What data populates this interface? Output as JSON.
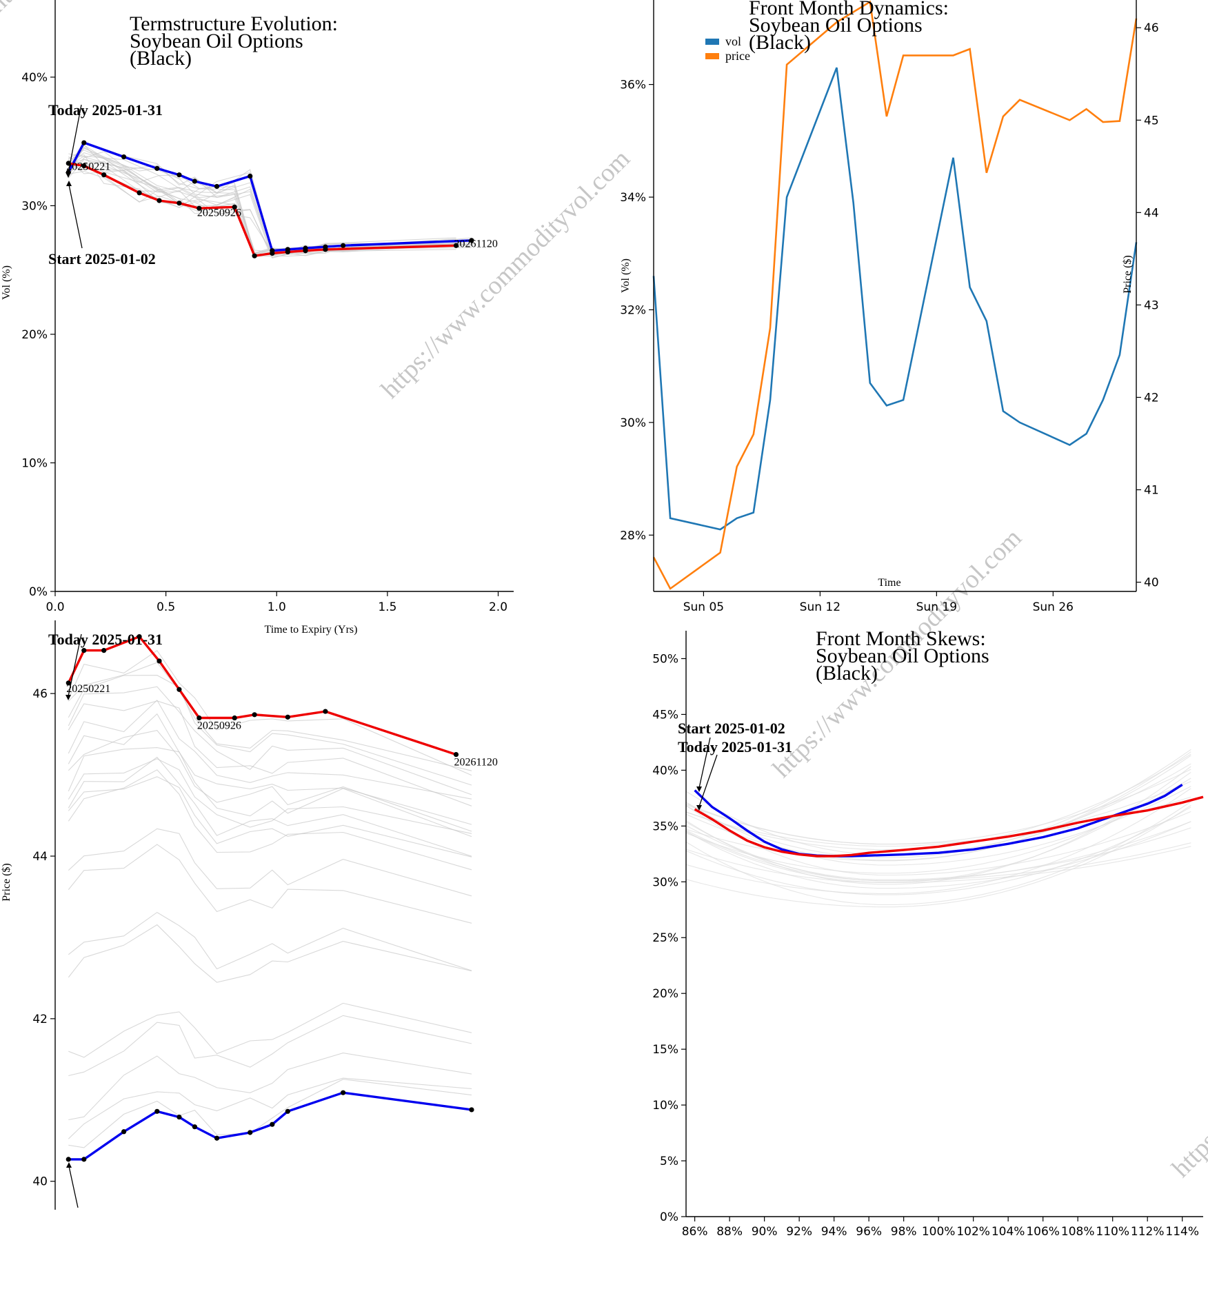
{
  "watermark": "https://www.commodityvol.com",
  "chart_data": [
    {
      "id": "termstructure",
      "type": "line",
      "title": [
        "Termstructure Evolution:",
        "Soybean Oil Options",
        "(Black)"
      ],
      "xlabel": "Time to Expiry (Yrs)",
      "ylabel": "Vol (%)",
      "xlim": [
        0,
        2.07
      ],
      "ylim": [
        0,
        46
      ],
      "xticks": [
        0.0,
        0.5,
        1.0,
        1.5,
        2.0
      ],
      "xtick_labels": [
        "0.0",
        "0.5",
        "1.0",
        "1.5",
        "2.0"
      ],
      "yticks": [
        0,
        10,
        20,
        30,
        40
      ],
      "ytick_labels": [
        "0%",
        "10%",
        "20%",
        "30%",
        "40%"
      ],
      "annotations": {
        "today": "Today 2025-01-31",
        "start": "Start 2025-01-02"
      },
      "point_labels": [
        {
          "text": "20250221",
          "x": 0.06,
          "y": 33.0
        },
        {
          "text": "20250926",
          "x": 0.65,
          "y": 29.4
        },
        {
          "text": "20261120",
          "x": 1.81,
          "y": 27.0
        }
      ],
      "series": [
        {
          "name": "Today 2025-01-31",
          "color": "#0000ee",
          "x": [
            0.06,
            0.13,
            0.31,
            0.46,
            0.56,
            0.63,
            0.73,
            0.88,
            0.98,
            1.05,
            1.13,
            1.22,
            1.3,
            1.88
          ],
          "y": [
            32.6,
            34.9,
            33.8,
            32.9,
            32.4,
            31.9,
            31.5,
            32.3,
            26.5,
            26.6,
            26.7,
            26.8,
            26.9,
            27.3
          ]
        },
        {
          "name": "Start 2025-01-02",
          "color": "#ee0000",
          "x": [
            0.06,
            0.13,
            0.22,
            0.38,
            0.47,
            0.56,
            0.65,
            0.81,
            0.9,
            0.98,
            1.05,
            1.13,
            1.22,
            1.81
          ],
          "y": [
            33.3,
            33.1,
            32.4,
            31.0,
            30.4,
            30.2,
            29.8,
            29.9,
            26.1,
            26.3,
            26.4,
            26.5,
            26.6,
            26.9
          ]
        }
      ]
    },
    {
      "id": "dynamics",
      "type": "line",
      "title": [
        "Front Month Dynamics:",
        "Soybean Oil Options",
        "(Black)"
      ],
      "xlabel": "Time",
      "ylabel": "Vol (%)",
      "y2label": "Price ($)",
      "legend": [
        {
          "label": "vol",
          "color": "#1f77b4"
        },
        {
          "label": "price",
          "color": "#ff7f0e"
        }
      ],
      "xlim": [
        "2025-01-02",
        "2025-01-31"
      ],
      "xtick_labels": [
        "Sun 05",
        "Sun 12",
        "Sun 19",
        "Sun 26"
      ],
      "xtick_dates": [
        "2025-01-05",
        "2025-01-12",
        "2025-01-19",
        "2025-01-26"
      ],
      "ylim": [
        27.0,
        37.5
      ],
      "yticks": [
        28,
        30,
        32,
        34,
        36
      ],
      "ytick_labels": [
        "28%",
        "30%",
        "32%",
        "34%",
        "36%"
      ],
      "y2lim": [
        39.9,
        46.3
      ],
      "y2ticks": [
        40,
        41,
        42,
        43,
        44,
        45,
        46
      ],
      "y2tick_labels": [
        "40",
        "41",
        "42",
        "43",
        "44",
        "45",
        "46"
      ],
      "dates": [
        "2025-01-02",
        "2025-01-03",
        "2025-01-06",
        "2025-01-07",
        "2025-01-08",
        "2025-01-09",
        "2025-01-10",
        "2025-01-13",
        "2025-01-14",
        "2025-01-15",
        "2025-01-16",
        "2025-01-17",
        "2025-01-20",
        "2025-01-21",
        "2025-01-22",
        "2025-01-23",
        "2025-01-24",
        "2025-01-27",
        "2025-01-28",
        "2025-01-29",
        "2025-01-30",
        "2025-01-31"
      ],
      "series": [
        {
          "name": "vol",
          "axis": "left",
          "color": "#1f77b4",
          "values": [
            32.6,
            28.3,
            28.1,
            28.3,
            28.4,
            30.4,
            34.0,
            36.3,
            33.9,
            30.7,
            30.3,
            30.4,
            34.7,
            32.4,
            31.8,
            30.2,
            30.0,
            29.6,
            29.8,
            30.4,
            31.2,
            33.2
          ]
        },
        {
          "name": "price",
          "axis": "right",
          "color": "#ff7f0e",
          "values": [
            40.27,
            39.93,
            40.32,
            41.25,
            41.6,
            42.75,
            45.6,
            46.06,
            46.17,
            46.28,
            45.04,
            45.7,
            45.7,
            45.77,
            44.43,
            45.04,
            45.22,
            45.0,
            45.12,
            44.98,
            44.99,
            46.1
          ]
        }
      ]
    },
    {
      "id": "price_termstructure",
      "type": "line",
      "xlabel": "",
      "ylabel": "Price ($)",
      "xlim": [
        0,
        2.07
      ],
      "ylim": [
        39.65,
        46.9
      ],
      "yticks": [
        40,
        42,
        44,
        46
      ],
      "ytick_labels": [
        "40",
        "42",
        "44",
        "46"
      ],
      "annotations": {
        "today": "Today 2025-01-31"
      },
      "point_labels": [
        {
          "text": "20250221",
          "x": 0.06,
          "y": 46.05
        },
        {
          "text": "20250926",
          "x": 0.65,
          "y": 45.6
        },
        {
          "text": "20261120",
          "x": 1.81,
          "y": 45.15
        }
      ],
      "series": [
        {
          "name": "Today 2025-01-31",
          "color": "#ee0000",
          "x": [
            0.06,
            0.13,
            0.22,
            0.38,
            0.47,
            0.56,
            0.65,
            0.81,
            0.9,
            1.05,
            1.22,
            1.81
          ],
          "y": [
            46.13,
            46.53,
            46.53,
            46.7,
            46.4,
            46.05,
            45.7,
            45.7,
            45.74,
            45.71,
            45.78,
            45.25
          ]
        },
        {
          "name": "Start 2025-01-02",
          "color": "#0000ee",
          "x": [
            0.06,
            0.13,
            0.31,
            0.46,
            0.56,
            0.63,
            0.73,
            0.88,
            0.98,
            1.05,
            1.3,
            1.88
          ],
          "y": [
            40.27,
            40.27,
            40.61,
            40.86,
            40.79,
            40.67,
            40.53,
            40.6,
            40.7,
            40.86,
            41.09,
            40.88
          ]
        }
      ]
    },
    {
      "id": "skews",
      "type": "line",
      "title": [
        "Front Month Skews:",
        "Soybean Oil Options",
        "(Black)"
      ],
      "xlabel": "",
      "ylabel": "",
      "xlim": [
        85.5,
        115.2
      ],
      "ylim": [
        0,
        52.5
      ],
      "xticks": [
        86,
        88,
        90,
        92,
        94,
        96,
        98,
        100,
        102,
        104,
        106,
        108,
        110,
        112,
        114
      ],
      "xtick_labels": [
        "86%",
        "88%",
        "90%",
        "92%",
        "94%",
        "96%",
        "98%",
        "100%",
        "102%",
        "104%",
        "106%",
        "108%",
        "110%",
        "112%",
        "114%"
      ],
      "yticks": [
        0,
        5,
        10,
        15,
        20,
        25,
        30,
        35,
        40,
        45,
        50
      ],
      "ytick_labels": [
        "0%",
        "5%",
        "10%",
        "15%",
        "20%",
        "25%",
        "30%",
        "35%",
        "40%",
        "45%",
        "50%"
      ],
      "annotations": {
        "start": "Start 2025-01-02",
        "today": "Today 2025-01-31"
      },
      "series": [
        {
          "name": "Start 2025-01-02",
          "color": "#0000ee",
          "x": [
            86,
            87,
            88,
            89,
            90,
            91,
            92,
            93,
            94,
            95,
            96,
            98,
            100,
            102,
            104,
            106,
            108,
            110,
            112,
            113,
            114
          ],
          "y": [
            38.2,
            36.7,
            35.7,
            34.6,
            33.6,
            32.9,
            32.5,
            32.35,
            32.3,
            32.3,
            32.35,
            32.45,
            32.6,
            32.9,
            33.4,
            34.0,
            34.8,
            35.9,
            37.0,
            37.7,
            38.7
          ]
        },
        {
          "name": "Today 2025-01-31",
          "color": "#ee0000",
          "x": [
            86,
            87,
            88,
            89,
            90,
            91,
            92,
            93,
            94,
            95,
            96,
            98,
            100,
            102,
            104,
            106,
            108,
            110,
            112,
            114,
            115.2
          ],
          "y": [
            36.5,
            35.6,
            34.6,
            33.7,
            33.1,
            32.7,
            32.45,
            32.3,
            32.3,
            32.4,
            32.6,
            32.85,
            33.15,
            33.6,
            34.05,
            34.6,
            35.3,
            35.9,
            36.4,
            37.1,
            37.6
          ]
        }
      ]
    }
  ]
}
